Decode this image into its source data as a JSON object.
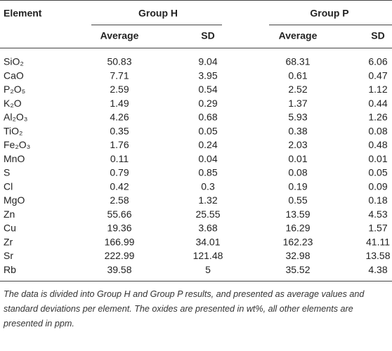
{
  "table": {
    "header": [
      "Element",
      "Group H",
      "Group P"
    ],
    "subheader": [
      "Average",
      "SD",
      "Average",
      "SD"
    ],
    "rows": [
      [
        "SiO₂",
        "50.83",
        "9.04",
        "68.31",
        "6.06"
      ],
      [
        "CaO",
        "7.71",
        "3.95",
        "0.61",
        "0.47"
      ],
      [
        "P₂O₅",
        "2.59",
        "0.54",
        "2.52",
        "1.12"
      ],
      [
        "K₂O",
        "1.49",
        "0.29",
        "1.37",
        "0.44"
      ],
      [
        "Al₂O₃",
        "4.26",
        "0.68",
        "5.93",
        "1.26"
      ],
      [
        "TiO₂",
        "0.35",
        "0.05",
        "0.38",
        "0.08"
      ],
      [
        "Fe₂O₃",
        "1.76",
        "0.24",
        "2.03",
        "0.48"
      ],
      [
        "MnO",
        "0.11",
        "0.04",
        "0.01",
        "0.01"
      ],
      [
        "S",
        "0.79",
        "0.85",
        "0.08",
        "0.05"
      ],
      [
        "Cl",
        "0.42",
        "0.3",
        "0.19",
        "0.09"
      ],
      [
        "MgO",
        "2.58",
        "1.32",
        "0.55",
        "0.18"
      ],
      [
        "Zn",
        "55.66",
        "25.55",
        "13.59",
        "4.53"
      ],
      [
        "Cu",
        "19.36",
        "3.68",
        "16.29",
        "1.57"
      ],
      [
        "Zr",
        "166.99",
        "34.01",
        "162.23",
        "41.11"
      ],
      [
        "Sr",
        "222.99",
        "121.48",
        "32.98",
        "13.58"
      ],
      [
        "Rb",
        "39.58",
        "5",
        "35.52",
        "4.38"
      ]
    ]
  },
  "footnote": "The data is divided into Group H and Group P results, and presented as average values and standard deviations per element. The oxides are presented in wt%, all other elements are presented in ppm."
}
